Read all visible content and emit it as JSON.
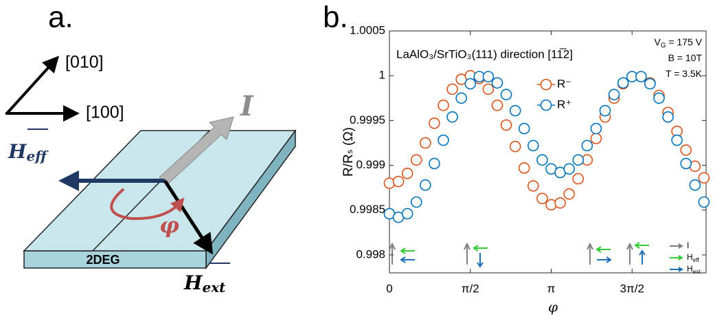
{
  "panel_a": {
    "label": "a.",
    "axis_y": "[010]",
    "axis_x": "[100]",
    "layer": "2DEG",
    "current": "I",
    "angle": "φ",
    "h_eff": {
      "base": "H",
      "sub": "eff"
    },
    "h_ext": {
      "base": "H",
      "sub": "ext"
    }
  },
  "chart_data": {
    "type": "scatter",
    "panel_label": "b.",
    "title": "LaAlO₃/SrTiO₃(111) direction [11̅2]",
    "ylabel": "R/Rₛ (Ω)",
    "xlabel": "φ",
    "annotations": [
      {
        "base": "V",
        "sub": "G",
        "tail": " = 175 V"
      },
      {
        "base": "B = 10T"
      },
      {
        "base": "T = 3.5K"
      }
    ],
    "arrow_legend": [
      {
        "base": "I",
        "color": "#808080"
      },
      {
        "base": "H",
        "sub": "eff",
        "color": "#33cc33"
      },
      {
        "base": "H",
        "sub": "ext",
        "color": "#1f6fb5"
      }
    ],
    "x": [
      0,
      0.1745,
      0.3491,
      0.5236,
      0.6981,
      0.8727,
      1.0472,
      1.2217,
      1.3963,
      1.5708,
      1.7453,
      1.9199,
      2.0944,
      2.2689,
      2.4435,
      2.618,
      2.7925,
      2.9671,
      3.1416,
      3.3161,
      3.4907,
      3.6652,
      3.8397,
      4.0143,
      4.1888,
      4.3633,
      4.5379,
      4.7124,
      4.8869,
      5.0615,
      5.236,
      5.4105,
      5.5851,
      5.7596,
      5.9341,
      6.1087
    ],
    "series": [
      {
        "name": "R⁻",
        "color": "#d95319",
        "values": [
          0.9988,
          0.99882,
          0.99891,
          0.99906,
          0.99925,
          0.99947,
          0.99967,
          0.99985,
          0.99996,
          1.0,
          0.99997,
          0.99985,
          0.99967,
          0.99945,
          0.99921,
          0.99897,
          0.99877,
          0.99863,
          0.99856,
          0.99858,
          0.99868,
          0.99885,
          0.99906,
          0.9993,
          0.99954,
          0.99975,
          0.99991,
          0.99999,
          0.99999,
          0.99992,
          0.99978,
          0.99959,
          0.99938,
          0.99917,
          0.99899,
          0.99886
        ]
      },
      {
        "name": "R⁺",
        "color": "#0072bd",
        "values": [
          0.99846,
          0.99842,
          0.99846,
          0.99859,
          0.99878,
          0.99902,
          0.99928,
          0.99954,
          0.99975,
          0.99991,
          0.99999,
          0.99999,
          0.99992,
          0.99979,
          0.99961,
          0.99941,
          0.99922,
          0.99906,
          0.99896,
          0.99892,
          0.99896,
          0.99906,
          0.99922,
          0.99941,
          0.99961,
          0.99979,
          0.99992,
          0.99999,
          0.99999,
          0.99991,
          0.99975,
          0.99954,
          0.99928,
          0.99902,
          0.99878,
          0.99859
        ]
      }
    ],
    "xlim": [
      0,
      6.15
    ],
    "ylim": [
      0.9978,
      1.0005
    ],
    "xticks": [
      0,
      {
        "value": 1.5708,
        "label": "π/2"
      },
      {
        "value": 3.1416,
        "label": "π"
      },
      {
        "value": 4.7124,
        "label": "3π/2"
      }
    ],
    "yticks": [
      0.998,
      0.9985,
      0.999,
      0.9995,
      1,
      1.0005
    ],
    "grid": false
  }
}
